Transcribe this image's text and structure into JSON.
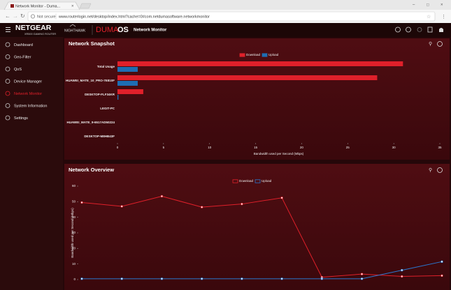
{
  "browser": {
    "tab_title": "Network Monitor - Duma...",
    "security": "Not secure",
    "url": "www.routerlogin.net/desktop/index.html?cache=0#com.netdumasoftware.networkmonitor"
  },
  "header": {
    "brand": "NETGEAR",
    "model": "XR500 GAMING ROUTER",
    "sub_brand": "NIGHTHAWK",
    "os_prefix": "DUMA",
    "os_suffix": "OS",
    "page": "Network Monitor"
  },
  "sidebar": {
    "items": [
      "Dashboard",
      "Geo-Filter",
      "QoS",
      "Device Manager",
      "Network Monitor",
      "System Information",
      "Settings"
    ],
    "active": 4
  },
  "chart_data": [
    {
      "type": "bar",
      "orientation": "horizontal",
      "title": "Network Snapshot",
      "categories": [
        "Total Usage",
        "HUAWEI_MATE_10_PRO-7E810F",
        "DESKTOP-FLF34KR",
        "LEGIT-PC",
        "HUAWEI_MATE_9-6517AD50224",
        "DESKTOP-M8HB43F"
      ],
      "series": [
        {
          "name": "Download",
          "color": "#e0202a",
          "values": [
            31,
            28.2,
            2.8,
            0,
            0,
            0
          ]
        },
        {
          "name": "Upload",
          "color": "#1e6db3",
          "values": [
            2.2,
            2.2,
            0.1,
            0,
            0,
            0
          ]
        }
      ],
      "xlim": [
        0,
        35
      ],
      "xticks": [
        0,
        5,
        10,
        15,
        20,
        25,
        30,
        35
      ],
      "xlabel": "Bandwidth used per Second (Mbps)"
    },
    {
      "type": "line",
      "title": "Network Overview",
      "categories": [
        null,
        null,
        null,
        null,
        null,
        null,
        null,
        null,
        null,
        null
      ],
      "series": [
        {
          "name": "Download",
          "color": "#e0202a",
          "values": [
            49.5,
            47,
            53.5,
            46.5,
            48.5,
            52.5,
            1.5,
            3.5,
            2,
            2.5
          ]
        },
        {
          "name": "Upload",
          "color": "#2a78d0",
          "values": [
            0.5,
            0.5,
            0.5,
            0.5,
            0.5,
            0.5,
            0.5,
            0.5,
            6,
            11.5
          ]
        }
      ],
      "ylim": [
        0,
        60
      ],
      "yticks": [
        0,
        10,
        20,
        30,
        40,
        50,
        60
      ],
      "ylabel": "Bandwidth used per Second (Mbps)"
    }
  ]
}
